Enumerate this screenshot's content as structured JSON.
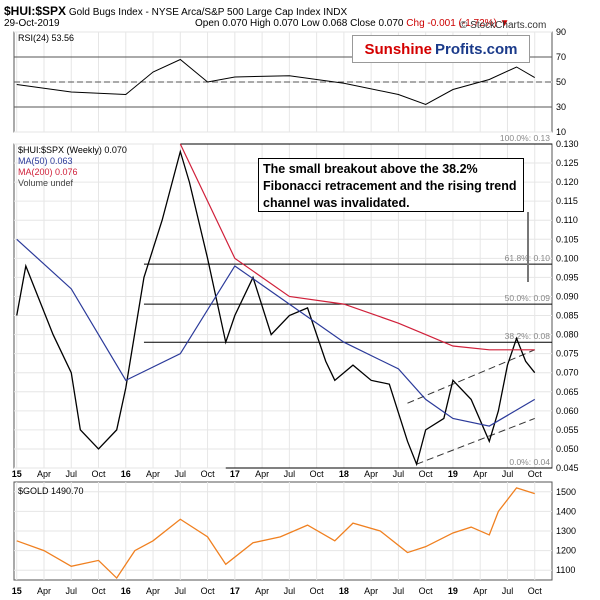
{
  "header": {
    "symbol": "$HUI:$SPX",
    "description": "Gold Bugs Index - NYSE Arca/S&P 500 Large Cap Index  INDX",
    "date": "29-Oct-2019",
    "ohlc": "Open 0.070  High 0.070  Low 0.068  Close 0.070",
    "change": "Chg -0.001 (-1.72%)",
    "change_marker": "▼",
    "copyright": "© StockCharts.com"
  },
  "brand": {
    "part1": "Sunshine",
    "part2": "Profits.com"
  },
  "annotation": "The small breakout above the 38.2% Fibonacci retracement and the rising trend channel was invalidated.",
  "legends": {
    "rsi": "RSI(24) 53.56",
    "main": "$HUI:$SPX (Weekly) 0.070",
    "ma50": "MA(50) 0.063",
    "ma200": "MA(200) 0.076",
    "volume": "Volume undef",
    "gold": "$GOLD 1490.70"
  },
  "colors": {
    "price": "#000000",
    "ma50": "#2b3a9a",
    "ma200": "#d0203a",
    "rsi": "#000000",
    "gold": "#f08020",
    "grid": "#e6e6e6",
    "fib": "#000000"
  },
  "chart_data": [
    {
      "type": "line",
      "name": "RSI",
      "yticks": [
        10,
        30,
        50,
        70,
        90
      ],
      "ylim": [
        10,
        90
      ],
      "reference_lines": [
        30,
        50,
        70
      ],
      "x": [
        "2015-01",
        "2015-07",
        "2016-01",
        "2016-04",
        "2016-07",
        "2016-10",
        "2017-01",
        "2017-07",
        "2018-01",
        "2018-07",
        "2018-10",
        "2019-01",
        "2019-05",
        "2019-08",
        "2019-10"
      ],
      "values": [
        48,
        42,
        40,
        58,
        68,
        50,
        54,
        55,
        49,
        40,
        32,
        44,
        52,
        62,
        53.56
      ]
    },
    {
      "type": "line",
      "name": "$HUI:$SPX (Weekly)",
      "ylim": [
        0.045,
        0.13
      ],
      "yticks": [
        0.045,
        0.05,
        0.055,
        0.06,
        0.065,
        0.07,
        0.075,
        0.08,
        0.085,
        0.09,
        0.095,
        0.1,
        0.105,
        0.11,
        0.115,
        0.12,
        0.125,
        0.13
      ],
      "x_ticks": [
        "15",
        "Apr",
        "Jul",
        "Oct",
        "16",
        "Apr",
        "Jul",
        "Oct",
        "17",
        "Apr",
        "Jul",
        "Oct",
        "18",
        "Apr",
        "Jul",
        "Oct",
        "19",
        "Apr",
        "Jul",
        "Oct"
      ],
      "series": [
        {
          "name": "$HUI:$SPX",
          "x": [
            "2015-01",
            "2015-02",
            "2015-03",
            "2015-05",
            "2015-07",
            "2015-08",
            "2015-10",
            "2015-12",
            "2016-01",
            "2016-03",
            "2016-05",
            "2016-07",
            "2016-08",
            "2016-10",
            "2016-12",
            "2017-01",
            "2017-03",
            "2017-05",
            "2017-07",
            "2017-09",
            "2017-11",
            "2017-12",
            "2018-02",
            "2018-04",
            "2018-06",
            "2018-08",
            "2018-09",
            "2018-10",
            "2018-12",
            "2019-01",
            "2019-03",
            "2019-05",
            "2019-06",
            "2019-07",
            "2019-08",
            "2019-09",
            "2019-10"
          ],
          "values": [
            0.085,
            0.098,
            0.092,
            0.08,
            0.07,
            0.055,
            0.05,
            0.055,
            0.066,
            0.095,
            0.11,
            0.128,
            0.12,
            0.1,
            0.078,
            0.085,
            0.095,
            0.08,
            0.085,
            0.087,
            0.073,
            0.068,
            0.072,
            0.068,
            0.067,
            0.052,
            0.046,
            0.055,
            0.058,
            0.068,
            0.063,
            0.052,
            0.06,
            0.072,
            0.079,
            0.073,
            0.07
          ]
        },
        {
          "name": "MA(50)",
          "x": [
            "2015-01",
            "2015-07",
            "2016-01",
            "2016-07",
            "2017-01",
            "2017-07",
            "2018-01",
            "2018-07",
            "2018-10",
            "2019-01",
            "2019-05",
            "2019-10"
          ],
          "values": [
            0.105,
            0.092,
            0.068,
            0.075,
            0.098,
            0.088,
            0.078,
            0.071,
            0.063,
            0.058,
            0.056,
            0.063
          ]
        },
        {
          "name": "MA(200)",
          "x": [
            "2016-07",
            "2016-10",
            "2017-01",
            "2017-07",
            "2018-01",
            "2018-07",
            "2018-10",
            "2019-01",
            "2019-05",
            "2019-10"
          ],
          "values": [
            0.13,
            0.115,
            0.1,
            0.09,
            0.088,
            0.083,
            0.08,
            0.077,
            0.076,
            0.076
          ]
        }
      ],
      "fibonacci": [
        {
          "label": "100.0%: 0.13",
          "value": 0.13
        },
        {
          "label": "61.8%: 0.10",
          "value": 0.0985
        },
        {
          "label": "50.0%: 0.09",
          "value": 0.088
        },
        {
          "label": "38.2%: 0.08",
          "value": 0.078
        },
        {
          "label": "0.0%: 0.04",
          "value": 0.045
        }
      ],
      "trend_channel": {
        "lower": {
          "x": [
            "2018-09",
            "2019-10"
          ],
          "values": [
            0.046,
            0.058
          ]
        },
        "upper": {
          "x": [
            "2018-08",
            "2019-10"
          ],
          "values": [
            0.062,
            0.076
          ]
        }
      }
    },
    {
      "type": "line",
      "name": "$GOLD",
      "ylim": [
        1050,
        1550
      ],
      "yticks": [
        1100,
        1200,
        1300,
        1400,
        1500
      ],
      "x": [
        "2015-01",
        "2015-04",
        "2015-07",
        "2015-10",
        "2015-12",
        "2016-02",
        "2016-04",
        "2016-07",
        "2016-10",
        "2016-12",
        "2017-03",
        "2017-06",
        "2017-09",
        "2017-12",
        "2018-02",
        "2018-05",
        "2018-08",
        "2018-10",
        "2019-01",
        "2019-03",
        "2019-05",
        "2019-06",
        "2019-08",
        "2019-10"
      ],
      "values": [
        1250,
        1200,
        1120,
        1150,
        1060,
        1200,
        1250,
        1360,
        1270,
        1130,
        1240,
        1270,
        1330,
        1250,
        1340,
        1300,
        1190,
        1220,
        1290,
        1320,
        1280,
        1400,
        1520,
        1490.7
      ]
    }
  ]
}
